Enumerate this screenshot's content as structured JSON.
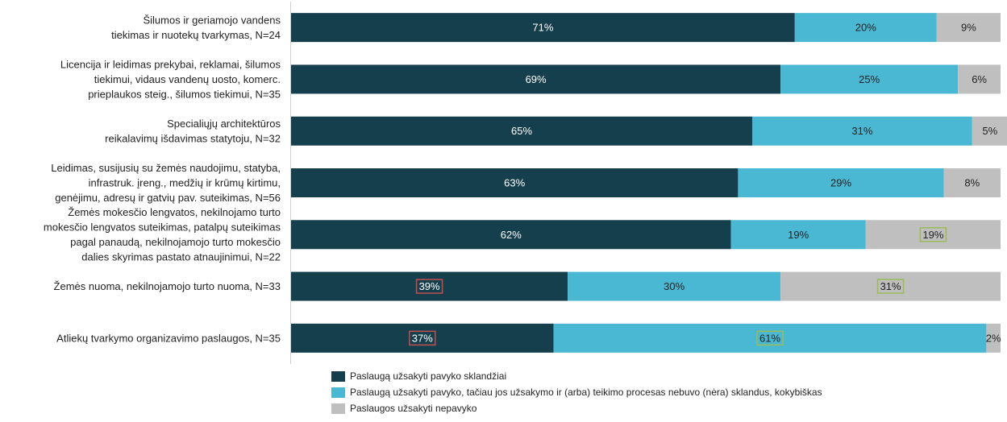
{
  "chart_data": {
    "type": "bar",
    "orientation": "horizontal",
    "stacked": "percent",
    "categories": [
      [
        "Šilumos ir geriamojo vandens",
        "tiekimas ir nuotekų tvarkymas, N=24"
      ],
      [
        "Licencija ir leidimas prekybai, reklamai, šilumos",
        "tiekimui, vidaus vandenų uosto, komerc.",
        "prieplaukos steig., šilumos tiekimui, N=35"
      ],
      [
        "Specialiųjų architektūros",
        "reikalavimų išdavimas statytoju, N=32"
      ],
      [
        "Leidimas, susijusių su žemės naudojimu, statyba,",
        "infrastruk. įreng., medžių ir krūmų kirtimu,",
        "genėjimu, adresų ir gatvių pav. suteikimas, N=56"
      ],
      [
        "Žemės mokesčio lengvatos, nekilnojamo turto",
        "mokesčio lengvatos suteikimas, patalpų suteikimas",
        "pagal panaudą, nekilnojamojo turto mokesčio",
        "dalies skyrimas pastato atnaujinimui, N=22"
      ],
      [
        "Žemės nuoma, nekilnojamojo turto nuoma, N=33"
      ],
      [
        "Atliekų tvarkymo organizavimo paslaugos, N=35"
      ]
    ],
    "series": [
      {
        "name": "Paslaugą užsakyti pavyko sklandžiai",
        "color": "#163f4e",
        "text_color": "#ffffff",
        "values": [
          71,
          69,
          65,
          63,
          62,
          39,
          37
        ]
      },
      {
        "name": "Paslaugą užsakyti pavyko, tačiau jos užsakymo ir (arba) teikimo procesas nebuvo (nėra) sklandus, kokybiškas",
        "color": "#4bb8d3",
        "text_color": "#222222",
        "values": [
          20,
          25,
          31,
          29,
          19,
          30,
          61
        ]
      },
      {
        "name": "Paslaugos užsakyti nepavyko",
        "color": "#bfbfbf",
        "text_color": "#222222",
        "values": [
          9,
          6,
          5,
          8,
          19,
          31,
          2
        ]
      }
    ],
    "value_suffix": "%",
    "highlights": [
      {
        "category": 4,
        "series": 2,
        "color": "#9bbb59"
      },
      {
        "category": 5,
        "series": 0,
        "color": "#c0504d"
      },
      {
        "category": 5,
        "series": 2,
        "color": "#9bbb59"
      },
      {
        "category": 6,
        "series": 0,
        "color": "#c0504d"
      },
      {
        "category": 6,
        "series": 1,
        "color": "#9bbb59"
      }
    ],
    "xlim": [
      0,
      100
    ],
    "grid": false,
    "legend_position": "bottom"
  }
}
